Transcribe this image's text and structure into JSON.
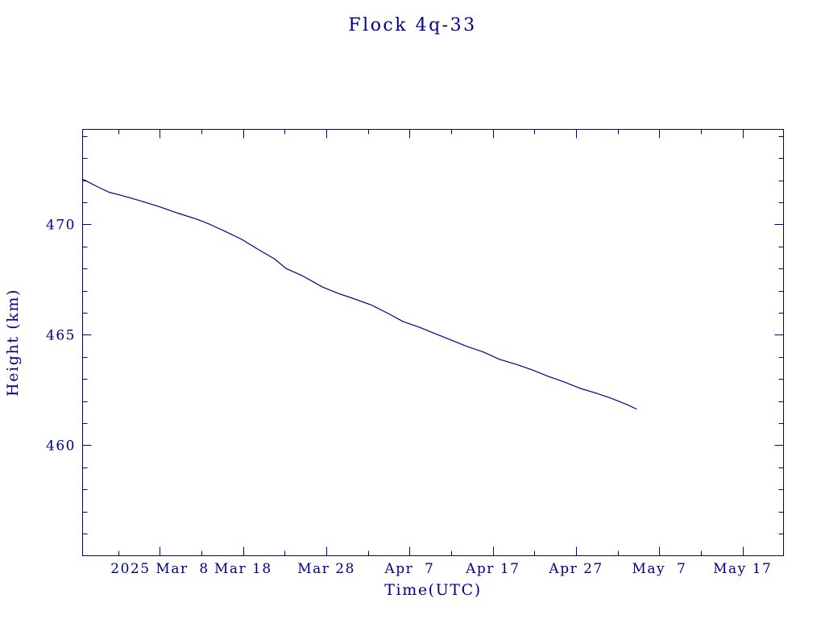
{
  "colors": {
    "ink": "#00008b",
    "background": "#ffffff"
  },
  "chart_data": {
    "type": "line",
    "title": "Flock 4q-33",
    "xlabel": "Time(UTC)",
    "ylabel": "Height (km)",
    "xlim": [
      "2025-02-26T17:00",
      "2025-05-21T22:00"
    ],
    "ylim": [
      455.0,
      474.3
    ],
    "x_ticks": [
      {
        "date": "2025-03-08",
        "label": "2025 Mar  8"
      },
      {
        "date": "2025-03-18",
        "label": "Mar 18"
      },
      {
        "date": "2025-03-28",
        "label": "Mar 28"
      },
      {
        "date": "2025-04-07",
        "label": "Apr  7"
      },
      {
        "date": "2025-04-17",
        "label": "Apr 17"
      },
      {
        "date": "2025-04-27",
        "label": "Apr 27"
      },
      {
        "date": "2025-05-07",
        "label": "May  7"
      },
      {
        "date": "2025-05-17",
        "label": "May 17"
      }
    ],
    "x_minor_tick_step_days": 5,
    "y_ticks": [
      {
        "value": 460,
        "label": "460"
      },
      {
        "value": 465,
        "label": "465"
      },
      {
        "value": 470,
        "label": "470"
      }
    ],
    "y_minor_tick_step": 1,
    "grid": false,
    "series": [
      {
        "x": [
          "2025-02-26T17:00",
          "2025-02-28T11:00",
          "2025-03-01T22:00",
          "2025-03-03T09:00",
          "2025-03-05T19:00",
          "2025-03-08T00:00",
          "2025-03-10T03:00",
          "2025-03-12T13:00",
          "2025-03-14T00:00",
          "2025-03-15T22:00",
          "2025-03-17T21:00",
          "2025-03-19T19:00",
          "2025-03-21T18:00",
          "2025-03-23T04:00",
          "2025-03-25T03:00",
          "2025-03-27T13:00",
          "2025-03-29T11:00",
          "2025-03-31T10:00",
          "2025-04-02T08:00",
          "2025-04-04T06:00",
          "2025-04-06T05:00",
          "2025-04-08T03:00",
          "2025-04-10T02:00",
          "2025-04-12T00:00",
          "2025-04-13T22:00",
          "2025-04-15T21:00",
          "2025-04-17T19:00",
          "2025-04-19T18:00",
          "2025-04-21T16:00",
          "2025-04-23T14:00",
          "2025-04-25T13:00",
          "2025-04-27T11:00",
          "2025-04-29T10:00",
          "2025-05-01T08:00",
          "2025-05-03T06:00",
          "2025-05-04T06:00"
        ],
        "y": [
          472.05,
          471.71,
          471.45,
          471.31,
          471.05,
          470.79,
          470.51,
          470.22,
          470.0,
          469.67,
          469.31,
          468.87,
          468.44,
          468.0,
          467.67,
          467.16,
          466.87,
          466.62,
          466.36,
          466.0,
          465.6,
          465.35,
          465.05,
          464.76,
          464.47,
          464.22,
          463.89,
          463.67,
          463.42,
          463.13,
          462.87,
          462.58,
          462.36,
          462.11,
          461.82,
          461.64
        ]
      }
    ]
  }
}
